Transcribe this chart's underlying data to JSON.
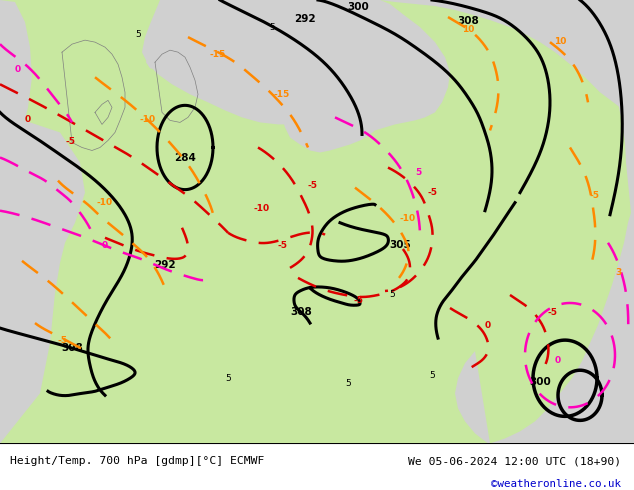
{
  "title_left": "Height/Temp. 700 hPa [gdmp][°C] ECMWF",
  "title_right": "We 05-06-2024 12:00 UTC (18+90)",
  "credit": "©weatheronline.co.uk",
  "land_color": "#c8e8a0",
  "sea_color": "#d0d0d0",
  "credit_color": "#0000cc",
  "figsize": [
    6.34,
    4.9
  ],
  "dpi": 100
}
